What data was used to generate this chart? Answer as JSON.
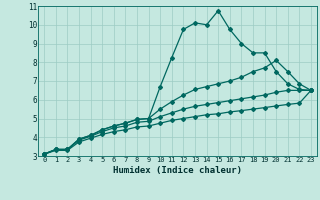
{
  "xlabel": "Humidex (Indice chaleur)",
  "xlim": [
    -0.5,
    23.5
  ],
  "ylim": [
    3,
    11
  ],
  "yticks": [
    3,
    4,
    5,
    6,
    7,
    8,
    9,
    10,
    11
  ],
  "xticks": [
    0,
    1,
    2,
    3,
    4,
    5,
    6,
    7,
    8,
    9,
    10,
    11,
    12,
    13,
    14,
    15,
    16,
    17,
    18,
    19,
    20,
    21,
    22,
    23
  ],
  "bg_color": "#c5e8e0",
  "grid_color": "#9dccc4",
  "line_color": "#006860",
  "lines": [
    {
      "x": [
        0,
        1,
        2,
        3,
        4,
        5,
        6,
        7,
        8,
        9,
        10,
        11,
        12,
        13,
        14,
        15,
        16,
        17,
        18,
        19,
        20,
        21,
        22,
        23
      ],
      "y": [
        3.1,
        3.35,
        3.35,
        3.9,
        4.1,
        4.4,
        4.6,
        4.75,
        4.95,
        5.0,
        6.7,
        8.25,
        9.75,
        10.1,
        10.0,
        10.75,
        9.75,
        9.0,
        8.5,
        8.5,
        7.5,
        6.85,
        6.55,
        6.5
      ],
      "marker": "D",
      "markersize": 2,
      "linewidth": 0.9
    },
    {
      "x": [
        0,
        1,
        2,
        3,
        4,
        5,
        6,
        7,
        8,
        9,
        10,
        11,
        12,
        13,
        14,
        15,
        16,
        17,
        18,
        19,
        20,
        21,
        22,
        23
      ],
      "y": [
        3.1,
        3.35,
        3.35,
        3.9,
        4.1,
        4.4,
        4.6,
        4.75,
        4.95,
        5.0,
        5.5,
        5.9,
        6.25,
        6.55,
        6.7,
        6.85,
        7.0,
        7.2,
        7.5,
        7.7,
        8.1,
        7.5,
        6.85,
        6.5
      ],
      "marker": "D",
      "markersize": 2,
      "linewidth": 0.9
    },
    {
      "x": [
        0,
        1,
        2,
        3,
        4,
        5,
        6,
        7,
        8,
        9,
        10,
        11,
        12,
        13,
        14,
        15,
        16,
        17,
        18,
        19,
        20,
        21,
        22,
        23
      ],
      "y": [
        3.1,
        3.35,
        3.35,
        3.85,
        4.05,
        4.3,
        4.5,
        4.6,
        4.8,
        4.85,
        5.1,
        5.3,
        5.5,
        5.65,
        5.75,
        5.85,
        5.95,
        6.05,
        6.15,
        6.25,
        6.4,
        6.5,
        6.5,
        6.5
      ],
      "marker": "D",
      "markersize": 2,
      "linewidth": 0.9
    },
    {
      "x": [
        0,
        1,
        2,
        3,
        4,
        5,
        6,
        7,
        8,
        9,
        10,
        11,
        12,
        13,
        14,
        15,
        16,
        17,
        18,
        19,
        20,
        21,
        22,
        23
      ],
      "y": [
        3.1,
        3.3,
        3.3,
        3.75,
        3.95,
        4.15,
        4.3,
        4.4,
        4.55,
        4.6,
        4.75,
        4.9,
        5.0,
        5.1,
        5.2,
        5.25,
        5.35,
        5.42,
        5.5,
        5.58,
        5.67,
        5.75,
        5.82,
        6.5
      ],
      "marker": "D",
      "markersize": 2,
      "linewidth": 0.9
    }
  ]
}
